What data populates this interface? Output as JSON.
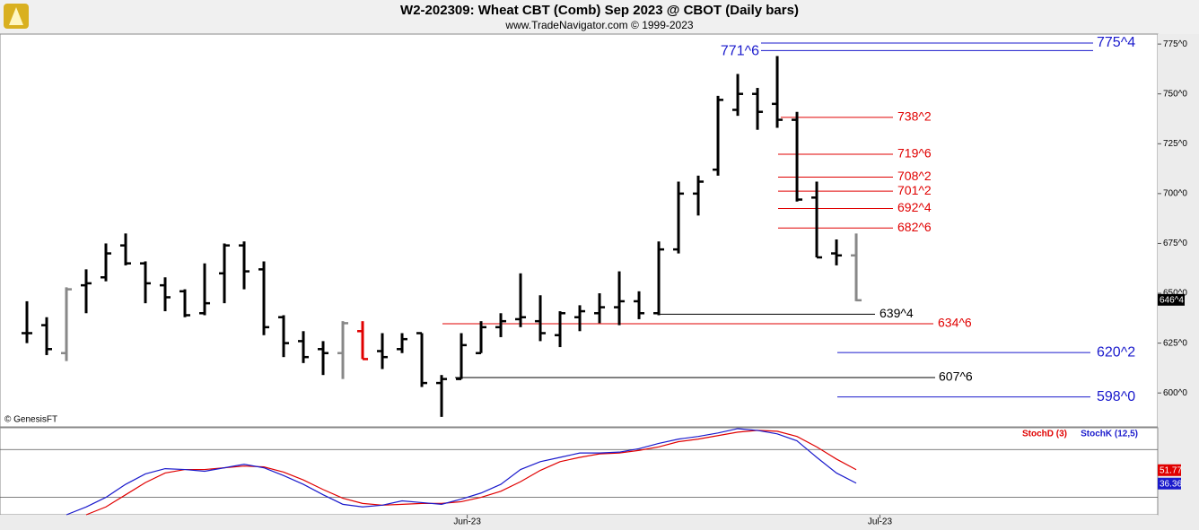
{
  "chart_data": [
    {
      "type": "ohlc",
      "title": "W2-202309:  Wheat CBT (Comb) Sep 2023 @ CBOT  (Daily bars)",
      "subtitle": "www.TradeNavigator.com © 1999-2023",
      "source": "© GenesisFT",
      "xlim": [
        -1.364,
        57.27
      ],
      "xticks": [
        {
          "value": 22.3,
          "label": "Jun-23"
        },
        {
          "value": 43.2,
          "label": "Jul-23"
        }
      ],
      "ylim": [
        583,
        780
      ],
      "yticks": [
        {
          "value": 775,
          "label": "775^0"
        },
        {
          "value": 750,
          "label": "750^0"
        },
        {
          "value": 725,
          "label": "725^0"
        },
        {
          "value": 700,
          "label": "700^0"
        },
        {
          "value": 675,
          "label": "675^0"
        },
        {
          "value": 650,
          "label": "650^0"
        },
        {
          "value": 625,
          "label": "625^0"
        },
        {
          "value": 600,
          "label": "600^0"
        }
      ],
      "open": [
        630,
        634,
        620,
        654,
        658,
        674,
        665,
        654,
        651,
        640,
        660,
        674,
        662,
        638,
        626,
        622,
        620,
        631,
        621,
        622,
        630,
        605,
        607,
        620,
        633,
        637,
        636,
        629,
        638,
        640,
        643,
        646,
        640,
        672,
        700,
        712,
        742,
        750,
        745,
        737,
        698,
        670,
        669
      ],
      "high": [
        646,
        638,
        653,
        662,
        675,
        680,
        666,
        658,
        652,
        665,
        675,
        676,
        666,
        639,
        631,
        626,
        636,
        636,
        630,
        630,
        630,
        609,
        630,
        636,
        640,
        660,
        649,
        641,
        644,
        650,
        661,
        651,
        676,
        706,
        709,
        749,
        760,
        753,
        769,
        741,
        706,
        677,
        680
      ],
      "low": [
        625,
        619,
        616,
        640,
        656,
        664,
        645,
        641,
        638,
        639,
        645,
        652,
        629,
        618,
        615,
        609,
        607,
        617,
        612,
        620,
        603,
        588,
        607,
        620,
        628,
        633,
        626,
        623,
        631,
        635,
        634,
        637,
        639,
        670,
        689,
        709,
        739,
        732,
        733,
        696,
        668,
        664,
        646
      ],
      "close": [
        630,
        622,
        652,
        655,
        670,
        665,
        655,
        648,
        639,
        645,
        674,
        661,
        633,
        625,
        618,
        620,
        635,
        617,
        618,
        627,
        605,
        607,
        624,
        633,
        636,
        638,
        630,
        640,
        641,
        643,
        646,
        640,
        672,
        700,
        706,
        747,
        750,
        741,
        737,
        697,
        668,
        669,
        646.5
      ],
      "bar_colors": [
        "#000",
        "#000",
        "#888",
        "#000",
        "#000",
        "#000",
        "#000",
        "#000",
        "#000",
        "#000",
        "#000",
        "#000",
        "#000",
        "#000",
        "#000",
        "#000",
        "#888",
        "#e00000",
        "#000",
        "#000",
        "#000",
        "#000",
        "#000",
        "#000",
        "#000",
        "#000",
        "#000",
        "#000",
        "#000",
        "#000",
        "#000",
        "#000",
        "#000",
        "#000",
        "#000",
        "#000",
        "#000",
        "#000",
        "#000",
        "#000",
        "#000",
        "#000",
        "#888"
      ],
      "last": {
        "value": 646.5,
        "label": "646^4"
      },
      "levels": [
        {
          "value": 775.5,
          "label": "775^4",
          "color": "#1a1acc"
        },
        {
          "value": 771.75,
          "label": "771^6",
          "color": "#1a1acc"
        },
        {
          "value": 738.25,
          "label": "738^2",
          "color": "#e00000"
        },
        {
          "value": 719.75,
          "label": "719^6",
          "color": "#e00000"
        },
        {
          "value": 708.25,
          "label": "708^2",
          "color": "#e00000"
        },
        {
          "value": 701.25,
          "label": "701^2",
          "color": "#e00000"
        },
        {
          "value": 692.5,
          "label": "692^4",
          "color": "#e00000"
        },
        {
          "value": 682.75,
          "label": "682^6",
          "color": "#e00000"
        },
        {
          "value": 639.5,
          "label": "639^4",
          "color": "#000000"
        },
        {
          "value": 634.75,
          "label": "634^6",
          "color": "#e00000"
        },
        {
          "value": 620.25,
          "label": "620^2",
          "color": "#1a1acc"
        },
        {
          "value": 607.75,
          "label": "607^6",
          "color": "#000000"
        },
        {
          "value": 598,
          "label": "598^0",
          "color": "#1a1acc"
        }
      ]
    },
    {
      "type": "line",
      "ylim": [
        0,
        100
      ],
      "levels": [
        75,
        20
      ],
      "series": [
        {
          "name": "StochD (3)",
          "color": "#e00000",
          "values": [
            null,
            null,
            null,
            0,
            9,
            23,
            37,
            48,
            52,
            52,
            54,
            56,
            55,
            49,
            40,
            29,
            19,
            13,
            11,
            12,
            13,
            13,
            15,
            20,
            27,
            38,
            51,
            61,
            66,
            70,
            71,
            74,
            78,
            84,
            87,
            91,
            95,
            97,
            96,
            90,
            78,
            64,
            51.77
          ]
        },
        {
          "name": "StochK (12,5)",
          "color": "#1a1acc",
          "values": [
            null,
            null,
            0,
            9,
            20,
            35,
            47,
            53,
            52,
            50,
            54,
            58,
            54,
            45,
            35,
            23,
            12,
            9,
            11,
            16,
            14,
            12,
            18,
            25,
            35,
            52,
            61,
            66,
            71,
            71,
            72,
            76,
            82,
            87,
            90,
            94,
            99,
            97,
            93,
            85,
            66,
            48,
            36.36
          ]
        }
      ]
    }
  ]
}
